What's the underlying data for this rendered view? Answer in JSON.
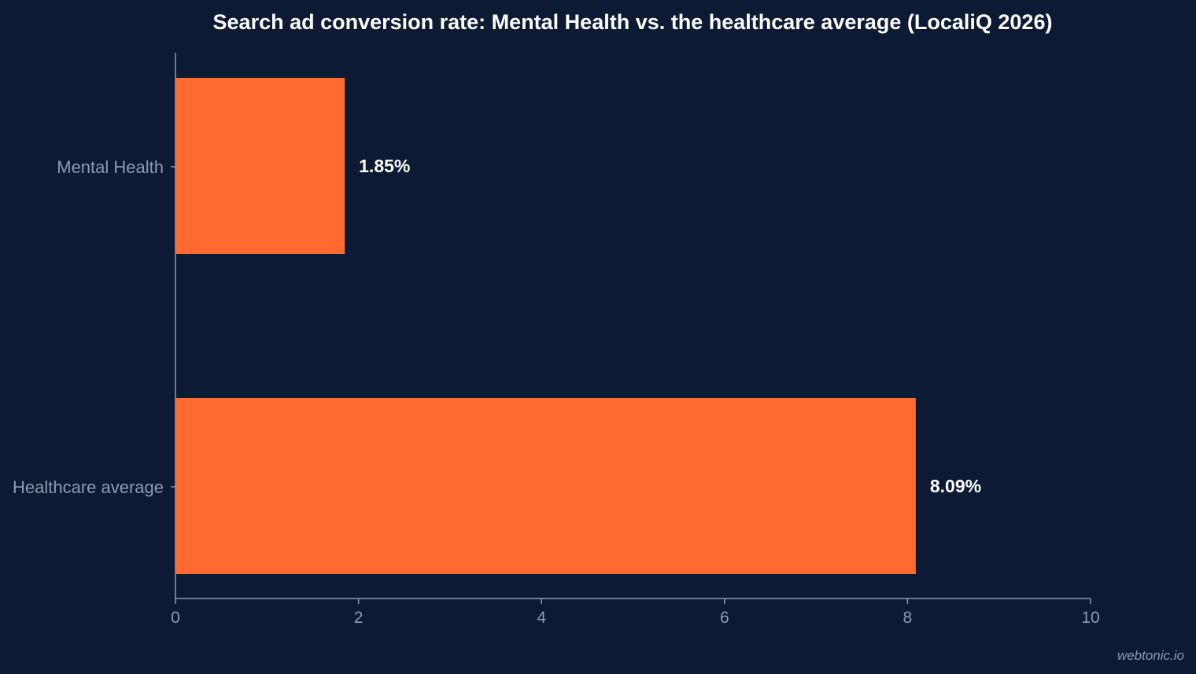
{
  "chart_data": {
    "type": "bar",
    "orientation": "horizontal",
    "title": "Search ad conversion rate: Mental Health vs. the healthcare average (LocaliQ 2026)",
    "xlabel": "",
    "ylabel": "",
    "categories": [
      "Mental Health",
      "Healthcare average"
    ],
    "values": [
      1.85,
      8.09
    ],
    "data_labels": [
      "1.85%",
      "8.09%"
    ],
    "xlim": [
      0,
      10
    ],
    "xticks": [
      0,
      2,
      4,
      6,
      8,
      10
    ],
    "xtick_labels": [
      "0",
      "2",
      "4",
      "6",
      "8",
      "10"
    ],
    "grid": false,
    "legend": "none",
    "bar_color": "#ff6b2f",
    "background_color": "#0c1b33",
    "axis_color": "#8d9ab0",
    "watermark": "webtonic.io"
  }
}
